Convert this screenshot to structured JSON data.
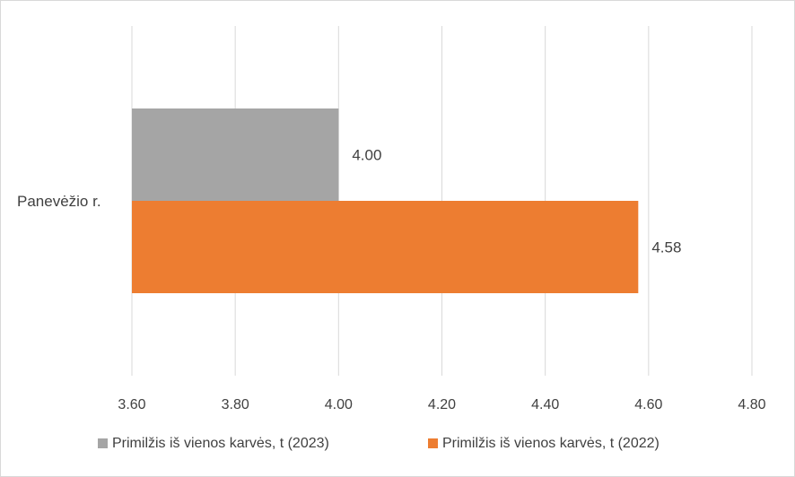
{
  "chart_data": {
    "type": "bar",
    "orientation": "horizontal",
    "categories": [
      "Panevėžio r."
    ],
    "series": [
      {
        "name": "Primilžis iš vienos karvės, t (2023)",
        "values": [
          4.0
        ],
        "color": "#a5a5a5",
        "data_labels": [
          "4.00"
        ]
      },
      {
        "name": "Primilžis iš vienos karvės, t (2022)",
        "values": [
          4.58
        ],
        "color": "#ed7d31",
        "data_labels": [
          "4.58"
        ]
      }
    ],
    "xlim": [
      3.6,
      4.8
    ],
    "x_ticks": [
      3.6,
      3.8,
      4.0,
      4.2,
      4.4,
      4.6,
      4.8
    ],
    "x_tick_labels": [
      "3.60",
      "3.80",
      "4.00",
      "4.20",
      "4.40",
      "4.60",
      "4.80"
    ],
    "title": "",
    "xlabel": "",
    "ylabel": "",
    "grid": true,
    "gridline_color": "#d9d9d9",
    "legend_position": "bottom"
  }
}
